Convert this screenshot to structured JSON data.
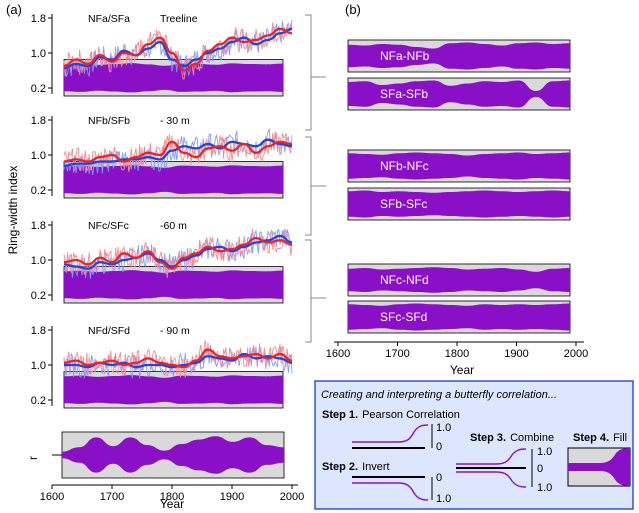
{
  "figure": {
    "panel_a_label": "(a)",
    "panel_b_label": "(b)",
    "y_axis_label": "Ring-width index",
    "x_axis_label": "Year",
    "panel_b_x_axis_label": "Year",
    "r_axis_label": "r",
    "colors": {
      "series_red": "#ee2222",
      "series_blue": "#2244dd",
      "raw_red": "#ff8a8a",
      "raw_blue": "#7f9bff",
      "butterfly_fill": "#8a10c8",
      "panel_gray": "#d9d9d9",
      "bracket_gray": "#888888",
      "legend_bg": "#dde6ff",
      "legend_border": "#3355cc"
    }
  },
  "legend": {
    "title": "Creating and interpreting a butterfly correlation...",
    "step1_bold": "Step 1.",
    "step1_text": "Pearson Correlation",
    "step2_bold": "Step 2.",
    "step2_text": "Invert",
    "step3_bold": "Step 3.",
    "step3_text": "Combine",
    "step4_bold": "Step 4.",
    "step4_text": "Fill",
    "s1_top": "1.0",
    "s1_bottom": "0",
    "s2_top": "0",
    "s2_bottom": "1.0",
    "s3_top": "1.0",
    "s3_mid": "0",
    "s3_bottom": "1.0"
  },
  "chart_data": [
    {
      "id": "panel-a",
      "type": "line",
      "xlabel": "Year",
      "ylabel": "Ring-width index",
      "xlim": [
        1600,
        2000
      ],
      "x_ticks": [
        "1600",
        "1700",
        "1800",
        "1900",
        "2000"
      ],
      "subpanels": [
        {
          "pair": "NFa/SFa",
          "note": "Treeline",
          "y_ticks": [
            "1.8",
            "1.0",
            "0.2"
          ],
          "ylim": [
            0.2,
            1.8
          ],
          "years": [
            1620,
            1640,
            1660,
            1680,
            1700,
            1720,
            1740,
            1760,
            1780,
            1800,
            1820,
            1840,
            1860,
            1880,
            1900,
            1920,
            1940,
            1960,
            1980,
            2000
          ],
          "series": [
            {
              "name": "NFa",
              "values": [
                0.65,
                0.75,
                0.7,
                0.9,
                0.85,
                1.05,
                0.95,
                1.1,
                1.25,
                0.85,
                0.7,
                0.85,
                1.0,
                1.1,
                1.25,
                1.35,
                1.2,
                1.3,
                1.45,
                1.55
              ]
            },
            {
              "name": "SFa",
              "values": [
                0.7,
                0.85,
                0.75,
                0.95,
                0.8,
                1.0,
                0.95,
                1.2,
                1.35,
                1.0,
                0.6,
                0.75,
                1.05,
                1.2,
                1.35,
                1.25,
                1.3,
                1.4,
                1.55,
                1.45
              ]
            }
          ]
        },
        {
          "pair": "NFb/SFb",
          "note": "- 30 m",
          "y_ticks": [
            "1.8",
            "1.0",
            "0.2"
          ],
          "ylim": [
            0.2,
            1.8
          ],
          "years": [
            1620,
            1640,
            1660,
            1680,
            1700,
            1720,
            1740,
            1760,
            1780,
            1800,
            1820,
            1840,
            1860,
            1880,
            1900,
            1920,
            1940,
            1960,
            1980,
            2000
          ],
          "series": [
            {
              "name": "NFb",
              "values": [
                0.75,
                0.8,
                0.8,
                0.85,
                0.85,
                0.9,
                0.9,
                0.95,
                0.9,
                1.1,
                1.2,
                1.15,
                1.25,
                1.15,
                1.3,
                1.25,
                1.2,
                1.35,
                1.25,
                1.2
              ]
            },
            {
              "name": "SFb",
              "values": [
                0.85,
                0.9,
                0.85,
                0.95,
                1.0,
                0.85,
                0.95,
                1.05,
                1.0,
                1.3,
                1.05,
                0.95,
                1.15,
                1.2,
                1.1,
                1.25,
                1.05,
                1.2,
                1.3,
                1.25
              ]
            }
          ]
        },
        {
          "pair": "NFc/SFc",
          "note": "-60 m",
          "y_ticks": [
            "1.8",
            "1.0",
            "0.2"
          ],
          "ylim": [
            0.2,
            1.8
          ],
          "years": [
            1620,
            1640,
            1660,
            1680,
            1700,
            1720,
            1740,
            1760,
            1780,
            1800,
            1820,
            1840,
            1860,
            1880,
            1900,
            1920,
            1940,
            1960,
            1980,
            2000
          ],
          "series": [
            {
              "name": "NFc",
              "values": [
                0.9,
                0.85,
                0.8,
                0.95,
                0.9,
                1.0,
                1.05,
                1.15,
                1.0,
                0.85,
                1.0,
                1.1,
                1.25,
                1.3,
                1.2,
                1.3,
                1.4,
                1.45,
                1.55,
                1.4
              ]
            },
            {
              "name": "SFc",
              "values": [
                0.95,
                1.0,
                0.9,
                1.05,
                0.95,
                1.15,
                1.05,
                1.2,
                0.95,
                0.8,
                1.05,
                1.15,
                1.3,
                1.2,
                1.25,
                1.35,
                1.5,
                1.4,
                1.45,
                1.35
              ]
            }
          ]
        },
        {
          "pair": "NFd/SFd",
          "note": "- 90 m",
          "y_ticks": [
            "1.8",
            "1.0",
            "0.2"
          ],
          "ylim": [
            0.2,
            1.8
          ],
          "years": [
            1620,
            1640,
            1660,
            1680,
            1700,
            1720,
            1740,
            1760,
            1780,
            1800,
            1820,
            1840,
            1860,
            1880,
            1900,
            1920,
            1940,
            1960,
            1980,
            2000
          ],
          "series": [
            {
              "name": "NFd",
              "values": [
                1.0,
                1.0,
                0.95,
                1.05,
                1.0,
                1.05,
                0.95,
                1.0,
                1.0,
                0.95,
                1.0,
                1.05,
                1.2,
                1.15,
                1.1,
                1.25,
                1.15,
                1.2,
                1.15,
                1.05
              ]
            },
            {
              "name": "SFd",
              "values": [
                1.05,
                1.1,
                1.0,
                1.05,
                1.1,
                1.0,
                1.05,
                1.15,
                1.05,
                1.0,
                0.95,
                1.1,
                1.35,
                1.2,
                1.15,
                1.2,
                1.25,
                1.15,
                1.25,
                1.1
              ]
            }
          ]
        }
      ],
      "bottom_r_panel_widths": [
        0.15,
        0.35,
        0.8,
        0.4,
        0.8,
        0.45,
        0.2,
        0.5,
        0.7,
        0.85,
        0.6,
        0.8,
        0.45,
        0.35
      ]
    },
    {
      "id": "panel-b",
      "type": "area",
      "xlabel": "Year",
      "xlim": [
        1600,
        2000
      ],
      "x_ticks": [
        "1600",
        "1700",
        "1800",
        "1900",
        "2000"
      ],
      "butterflies": [
        {
          "label": "NFa-NFb",
          "widths": [
            0.75,
            0.7,
            0.8,
            0.75,
            0.6,
            0.5,
            0.85,
            0.9,
            0.8,
            0.7,
            0.85,
            0.9,
            0.8,
            0.85
          ]
        },
        {
          "label": "SFa-SFb",
          "widths": [
            0.8,
            0.85,
            0.6,
            0.7,
            0.85,
            0.9,
            0.55,
            0.7,
            0.85,
            0.8,
            0.9,
            0.2,
            0.85,
            0.9
          ]
        },
        {
          "label": "NFb-NFc",
          "widths": [
            0.85,
            0.8,
            0.75,
            0.85,
            0.9,
            0.85,
            0.8,
            0.7,
            0.8,
            0.85,
            0.9,
            0.8,
            0.85,
            0.9
          ]
        },
        {
          "label": "SFb-SFc",
          "widths": [
            0.85,
            0.9,
            0.8,
            0.85,
            0.8,
            0.75,
            0.8,
            0.85,
            0.9,
            0.85,
            0.8,
            0.85,
            0.9,
            0.85
          ]
        },
        {
          "label": "NFc-NFd",
          "widths": [
            0.75,
            0.8,
            0.7,
            0.75,
            0.8,
            0.85,
            0.8,
            0.7,
            0.75,
            0.8,
            0.7,
            0.55,
            0.75,
            0.8
          ]
        },
        {
          "label": "SFc-SFd",
          "widths": [
            0.85,
            0.8,
            0.75,
            0.85,
            0.9,
            0.85,
            0.8,
            0.75,
            0.85,
            0.8,
            0.85,
            0.8,
            0.85,
            0.9
          ]
        }
      ]
    }
  ]
}
